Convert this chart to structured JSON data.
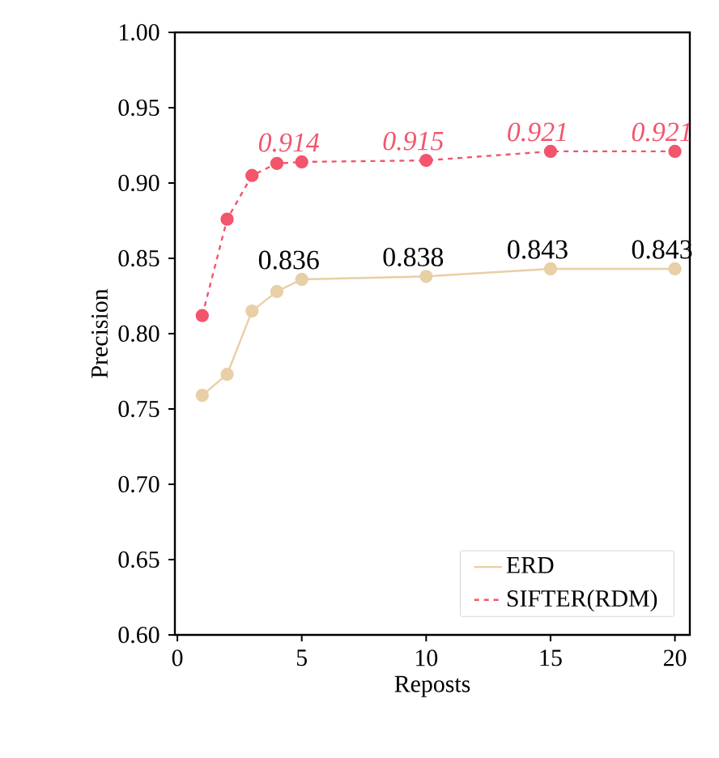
{
  "chart_data": {
    "type": "line",
    "xlabel": "Reposts",
    "ylabel": "Precision",
    "x": [
      1,
      2,
      3,
      4,
      5,
      10,
      15,
      20
    ],
    "series": [
      {
        "name": "ERD",
        "color": "#e8cfa6",
        "line_style": "solid",
        "values": [
          0.759,
          0.773,
          0.815,
          0.828,
          0.836,
          0.838,
          0.843,
          0.843
        ],
        "value_labels": [
          null,
          null,
          null,
          null,
          "0.836",
          "0.838",
          "0.843",
          "0.843"
        ]
      },
      {
        "name": "SIFTER(RDM)",
        "color": "#f2556c",
        "line_style": "dashed",
        "values": [
          0.812,
          0.876,
          0.905,
          0.913,
          0.914,
          0.915,
          0.921,
          0.921
        ],
        "value_labels": [
          null,
          null,
          null,
          null,
          "0.914",
          "0.915",
          "0.921",
          "0.921"
        ]
      }
    ],
    "marker": "circle",
    "legend": "bottom right",
    "grid": false,
    "xlim": [
      -0.1,
      20.6
    ],
    "ylim": [
      0.6,
      1.0
    ],
    "xticks": [
      0,
      5,
      10,
      15,
      20
    ],
    "yticks": [
      {
        "value": 0.6,
        "label": "0.60"
      },
      {
        "value": 0.65,
        "label": "0.65"
      },
      {
        "value": 0.7,
        "label": "0.70"
      },
      {
        "value": 0.75,
        "label": "0.75"
      },
      {
        "value": 0.8,
        "label": "0.80"
      },
      {
        "value": 0.85,
        "label": "0.85"
      },
      {
        "value": 0.9,
        "label": "0.90"
      },
      {
        "value": 0.95,
        "label": "0.95"
      },
      {
        "value": 1.0,
        "label": "1.00"
      }
    ]
  }
}
